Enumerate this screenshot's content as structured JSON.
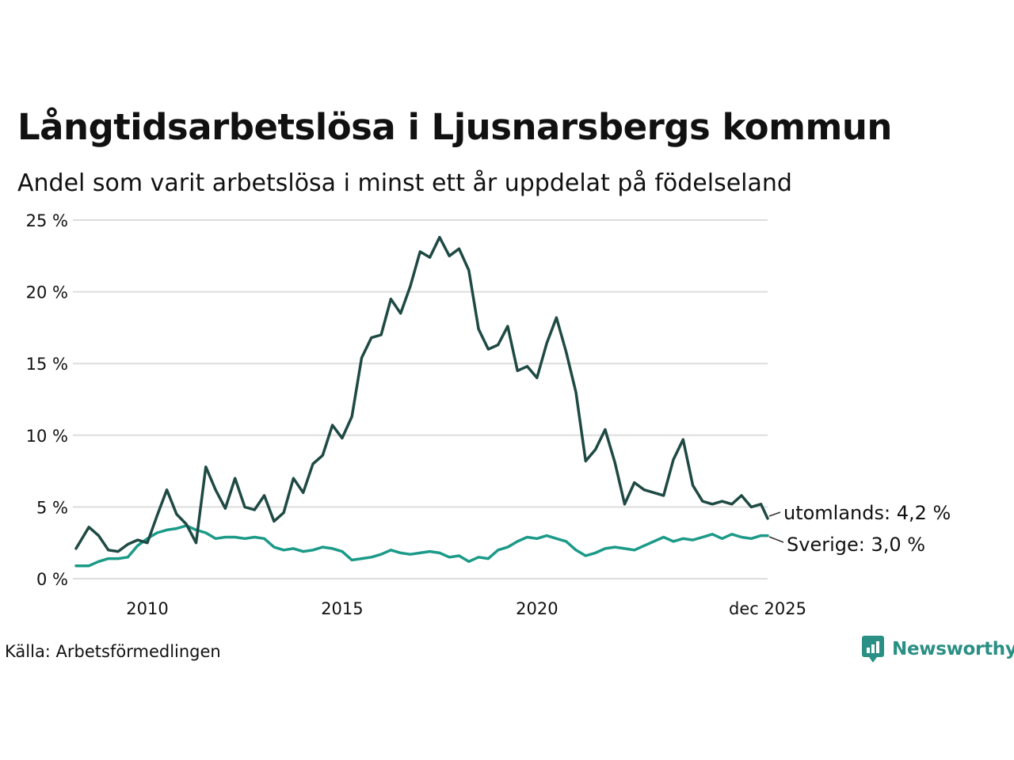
{
  "chart_data": {
    "type": "line",
    "title": "Långtidsarbetslösa i Ljusnarsbergs kommun",
    "subtitle": "Andel som varit arbetslösa i minst ett år uppdelat på födelseland",
    "source": "Källa: Arbetsförmedlingen",
    "brand": "Newsworthy",
    "ylim": [
      0,
      25
    ],
    "y_ticks": [
      {
        "value": 0,
        "label": "0 %"
      },
      {
        "value": 5,
        "label": "5 %"
      },
      {
        "value": 10,
        "label": "10 %"
      },
      {
        "value": 15,
        "label": "15 %"
      },
      {
        "value": 20,
        "label": "20 %"
      },
      {
        "value": 25,
        "label": "25 %"
      }
    ],
    "xlim": [
      2008.17,
      2025.92
    ],
    "x_ticks": [
      {
        "value": 2010,
        "label": "2010"
      },
      {
        "value": 2015,
        "label": "2015"
      },
      {
        "value": 2020,
        "label": "2020"
      },
      {
        "value": 2025.92,
        "label": "dec 2025"
      }
    ],
    "gridlines": true,
    "series": [
      {
        "name": "utomlands",
        "color": "#1f4a44",
        "end_label": "utomlands: 4,2 %",
        "x": [
          2008.17,
          2008.5,
          2008.75,
          2009.0,
          2009.25,
          2009.5,
          2009.75,
          2010.0,
          2010.25,
          2010.5,
          2010.75,
          2011.0,
          2011.25,
          2011.5,
          2011.75,
          2012.0,
          2012.25,
          2012.5,
          2012.75,
          2013.0,
          2013.25,
          2013.5,
          2013.75,
          2014.0,
          2014.25,
          2014.5,
          2014.75,
          2015.0,
          2015.25,
          2015.5,
          2015.75,
          2016.0,
          2016.25,
          2016.5,
          2016.75,
          2017.0,
          2017.25,
          2017.5,
          2017.75,
          2018.0,
          2018.25,
          2018.5,
          2018.75,
          2019.0,
          2019.25,
          2019.5,
          2019.75,
          2020.0,
          2020.25,
          2020.5,
          2020.75,
          2021.0,
          2021.25,
          2021.5,
          2021.75,
          2022.0,
          2022.25,
          2022.5,
          2022.75,
          2023.0,
          2023.25,
          2023.5,
          2023.75,
          2024.0,
          2024.25,
          2024.5,
          2024.75,
          2025.0,
          2025.25,
          2025.5,
          2025.75,
          2025.92
        ],
        "values": [
          2.1,
          3.6,
          3.0,
          2.0,
          1.9,
          2.4,
          2.7,
          2.5,
          4.4,
          6.2,
          4.5,
          3.8,
          2.5,
          7.8,
          6.2,
          4.9,
          7.0,
          5.0,
          4.8,
          5.8,
          4.0,
          4.6,
          7.0,
          6.0,
          8.0,
          8.6,
          10.7,
          9.8,
          11.3,
          15.4,
          16.8,
          17.0,
          19.5,
          18.5,
          20.4,
          22.8,
          22.4,
          23.8,
          22.5,
          23.0,
          21.5,
          17.4,
          16.0,
          16.3,
          17.6,
          14.5,
          14.8,
          14.0,
          16.4,
          18.2,
          15.8,
          13.0,
          8.2,
          9.0,
          10.4,
          8.1,
          5.2,
          6.7,
          6.2,
          6.0,
          5.8,
          8.3,
          9.7,
          6.5,
          5.4,
          5.2,
          5.4,
          5.2,
          5.8,
          5.0,
          5.2,
          4.2
        ]
      },
      {
        "name": "Sverige",
        "color": "#1b9a88",
        "end_label": "Sverige: 3,0 %",
        "x": [
          2008.17,
          2008.5,
          2008.75,
          2009.0,
          2009.25,
          2009.5,
          2009.75,
          2010.0,
          2010.25,
          2010.5,
          2010.75,
          2011.0,
          2011.25,
          2011.5,
          2011.75,
          2012.0,
          2012.25,
          2012.5,
          2012.75,
          2013.0,
          2013.25,
          2013.5,
          2013.75,
          2014.0,
          2014.25,
          2014.5,
          2014.75,
          2015.0,
          2015.25,
          2015.5,
          2015.75,
          2016.0,
          2016.25,
          2016.5,
          2016.75,
          2017.0,
          2017.25,
          2017.5,
          2017.75,
          2018.0,
          2018.25,
          2018.5,
          2018.75,
          2019.0,
          2019.25,
          2019.5,
          2019.75,
          2020.0,
          2020.25,
          2020.5,
          2020.75,
          2021.0,
          2021.25,
          2021.5,
          2021.75,
          2022.0,
          2022.25,
          2022.5,
          2022.75,
          2023.0,
          2023.25,
          2023.5,
          2023.75,
          2024.0,
          2024.25,
          2024.5,
          2024.75,
          2025.0,
          2025.25,
          2025.5,
          2025.75,
          2025.92
        ],
        "values": [
          0.9,
          0.9,
          1.2,
          1.4,
          1.4,
          1.5,
          2.3,
          2.8,
          3.2,
          3.4,
          3.5,
          3.7,
          3.4,
          3.2,
          2.8,
          2.9,
          2.9,
          2.8,
          2.9,
          2.8,
          2.2,
          2.0,
          2.1,
          1.9,
          2.0,
          2.2,
          2.1,
          1.9,
          1.3,
          1.4,
          1.5,
          1.7,
          2.0,
          1.8,
          1.7,
          1.8,
          1.9,
          1.8,
          1.5,
          1.6,
          1.2,
          1.5,
          1.4,
          2.0,
          2.2,
          2.6,
          2.9,
          2.8,
          3.0,
          2.8,
          2.6,
          2.0,
          1.6,
          1.8,
          2.1,
          2.2,
          2.1,
          2.0,
          2.3,
          2.6,
          2.9,
          2.6,
          2.8,
          2.7,
          2.9,
          3.1,
          2.8,
          3.1,
          2.9,
          2.8,
          3.0,
          3.0
        ]
      }
    ]
  }
}
